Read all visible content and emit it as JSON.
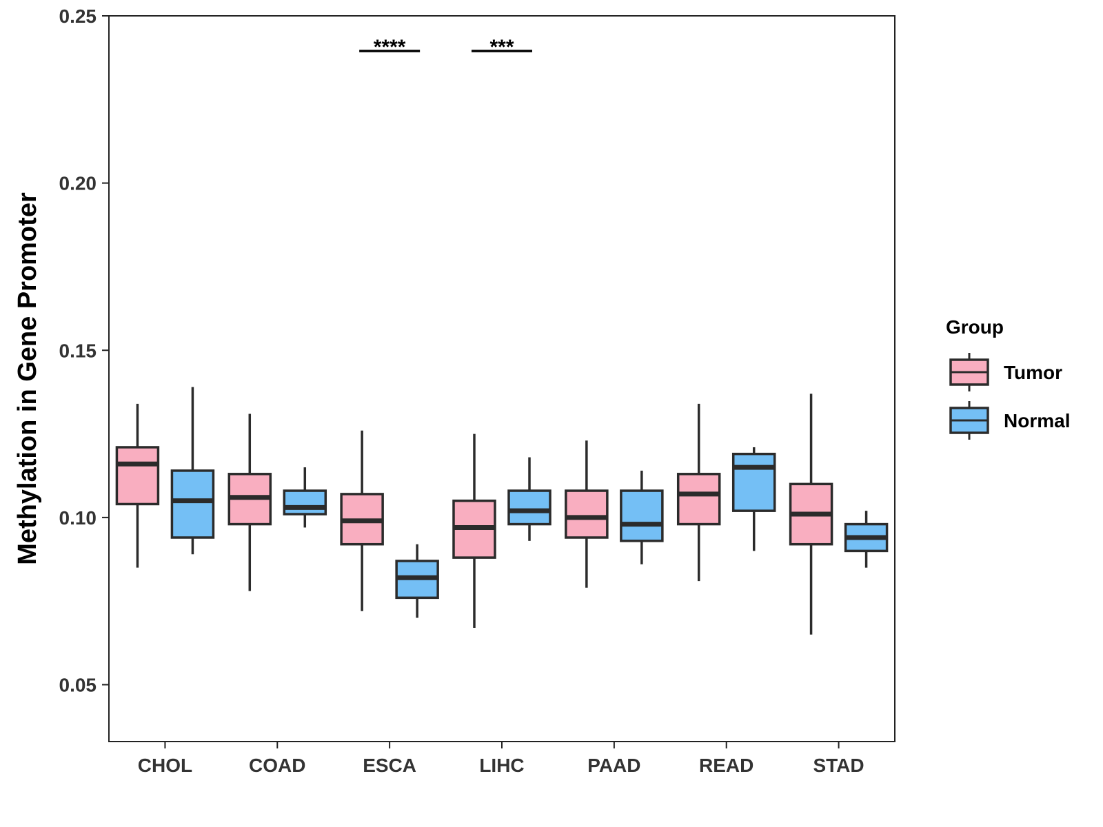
{
  "chart_data": {
    "type": "boxplot",
    "title": "",
    "xlabel": "",
    "ylabel": "Methylation in Gene Promoter",
    "ylim": [
      0.033,
      0.25
    ],
    "y_ticks": [
      "0.05",
      "0.10",
      "0.15",
      "0.20",
      "0.25"
    ],
    "categories": [
      "CHOL",
      "COAD",
      "ESCA",
      "LIHC",
      "PAAD",
      "READ",
      "STAD"
    ],
    "legend": {
      "title": "Group",
      "position": "right",
      "entries": [
        "Tumor",
        "Normal"
      ]
    },
    "series": [
      {
        "name": "Tumor",
        "color": "#F9AEC0",
        "boxes": [
          {
            "whisker_low": 0.085,
            "q1": 0.104,
            "median": 0.116,
            "q3": 0.121,
            "whisker_high": 0.134
          },
          {
            "whisker_low": 0.078,
            "q1": 0.098,
            "median": 0.106,
            "q3": 0.113,
            "whisker_high": 0.131
          },
          {
            "whisker_low": 0.072,
            "q1": 0.092,
            "median": 0.099,
            "q3": 0.107,
            "whisker_high": 0.126
          },
          {
            "whisker_low": 0.067,
            "q1": 0.088,
            "median": 0.097,
            "q3": 0.105,
            "whisker_high": 0.125
          },
          {
            "whisker_low": 0.079,
            "q1": 0.094,
            "median": 0.1,
            "q3": 0.108,
            "whisker_high": 0.123
          },
          {
            "whisker_low": 0.081,
            "q1": 0.098,
            "median": 0.107,
            "q3": 0.113,
            "whisker_high": 0.134
          },
          {
            "whisker_low": 0.065,
            "q1": 0.092,
            "median": 0.101,
            "q3": 0.11,
            "whisker_high": 0.137
          }
        ]
      },
      {
        "name": "Normal",
        "color": "#74BFF5",
        "boxes": [
          {
            "whisker_low": 0.089,
            "q1": 0.094,
            "median": 0.105,
            "q3": 0.114,
            "whisker_high": 0.139
          },
          {
            "whisker_low": 0.097,
            "q1": 0.101,
            "median": 0.103,
            "q3": 0.108,
            "whisker_high": 0.115
          },
          {
            "whisker_low": 0.07,
            "q1": 0.076,
            "median": 0.082,
            "q3": 0.087,
            "whisker_high": 0.092
          },
          {
            "whisker_low": 0.093,
            "q1": 0.098,
            "median": 0.102,
            "q3": 0.108,
            "whisker_high": 0.118
          },
          {
            "whisker_low": 0.086,
            "q1": 0.093,
            "median": 0.098,
            "q3": 0.108,
            "whisker_high": 0.114
          },
          {
            "whisker_low": 0.09,
            "q1": 0.102,
            "median": 0.115,
            "q3": 0.119,
            "whisker_high": 0.121
          },
          {
            "whisker_low": 0.085,
            "q1": 0.09,
            "median": 0.094,
            "q3": 0.098,
            "whisker_high": 0.102
          }
        ]
      }
    ],
    "annotations": [
      {
        "category": "ESCA",
        "label": "****",
        "y": 0.2395
      },
      {
        "category": "LIHC",
        "label": "***",
        "y": 0.2395
      }
    ]
  }
}
